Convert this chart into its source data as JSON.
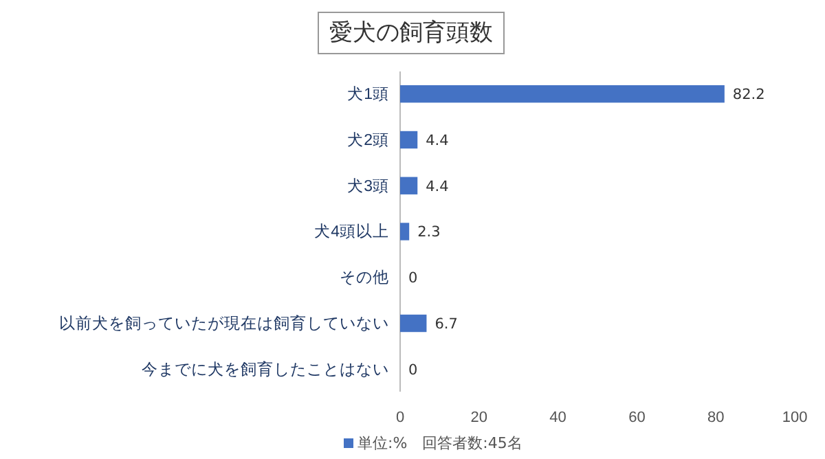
{
  "chart_data": {
    "type": "bar",
    "orientation": "horizontal",
    "title": "愛犬の飼育頭数",
    "categories": [
      "犬1頭",
      "犬2頭",
      "犬3頭",
      "犬4頭以上",
      "その他",
      "以前犬を飼っていたが現在は飼育していない",
      "今までに犬を飼育したことはない"
    ],
    "series": [
      {
        "name": "単位:%　回答者数:45名",
        "color": "#4472c4",
        "values": [
          82.2,
          4.4,
          4.4,
          2.3,
          0,
          6.7,
          0
        ]
      }
    ],
    "xlim": [
      0,
      100
    ],
    "xticks": [
      0,
      20,
      40,
      60,
      80,
      100
    ],
    "data_labels": true,
    "grid": false,
    "legend": "bottom"
  }
}
